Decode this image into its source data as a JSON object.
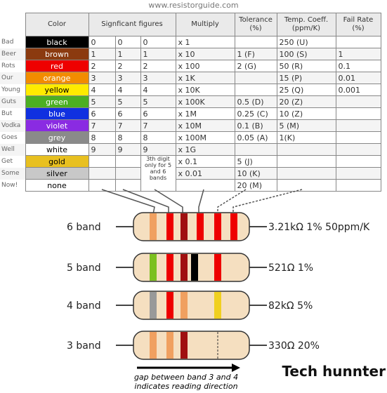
{
  "header": {
    "url": "www.resistorguide.com"
  },
  "table": {
    "columns": [
      {
        "title": "Color"
      },
      {
        "title": "Signficant figures"
      },
      {
        "title": "Multiply"
      },
      {
        "title": "Tolerance",
        "unit": "(%)"
      },
      {
        "title": "Temp. Coeff.",
        "unit": "(ppm/K)"
      },
      {
        "title": "Fail Rate",
        "unit": "(%)"
      }
    ],
    "rows": [
      {
        "mnemonic": "Bad",
        "color": "black",
        "digits": [
          "0",
          "0",
          "0"
        ],
        "multiply": "x 1",
        "temp": "250 (U)"
      },
      {
        "mnemonic": "Beer",
        "color": "brown",
        "digits": [
          "1",
          "1",
          "1"
        ],
        "multiply": "x 10",
        "tolerance": "1 (F)",
        "temp": "100 (S)",
        "fail": "1"
      },
      {
        "mnemonic": "Rots",
        "color": "red",
        "digits": [
          "2",
          "2",
          "2"
        ],
        "multiply": "x 100",
        "tolerance": "2 (G)",
        "temp": "50 (R)",
        "fail": "0.1"
      },
      {
        "mnemonic": "Our",
        "color": "orange",
        "digits": [
          "3",
          "3",
          "3"
        ],
        "multiply": "x 1K",
        "temp": "15 (P)",
        "fail": "0.01"
      },
      {
        "mnemonic": "Young",
        "color": "yellow",
        "digits": [
          "4",
          "4",
          "4"
        ],
        "multiply": "x 10K",
        "temp": "25 (Q)",
        "fail": "0.001"
      },
      {
        "mnemonic": "Guts",
        "color": "green",
        "digits": [
          "5",
          "5",
          "5"
        ],
        "multiply": "x 100K",
        "tolerance": "0.5 (D)",
        "temp": "20 (Z)"
      },
      {
        "mnemonic": "But",
        "color": "blue",
        "digits": [
          "6",
          "6",
          "6"
        ],
        "multiply": "x 1M",
        "tolerance": "0.25 (C)",
        "temp": "10 (Z)"
      },
      {
        "mnemonic": "Vodka",
        "color": "violet",
        "digits": [
          "7",
          "7",
          "7"
        ],
        "multiply": "x 10M",
        "tolerance": "0.1 (B)",
        "temp": "5 (M)"
      },
      {
        "mnemonic": "Goes",
        "color": "grey",
        "digits": [
          "8",
          "8",
          "8"
        ],
        "multiply": "x 100M",
        "tolerance": "0.05 (A)",
        "temp": "1(K)"
      },
      {
        "mnemonic": "Well",
        "color": "white",
        "digits": [
          "9",
          "9",
          "9"
        ],
        "multiply": "x 1G"
      },
      {
        "mnemonic": "Get",
        "color": "gold",
        "multiply": "x 0.1",
        "tolerance": "5 (J)"
      },
      {
        "mnemonic": "Some",
        "color": "silver",
        "multiply": "x 0.01",
        "tolerance": "10 (K)"
      },
      {
        "mnemonic": "Now!",
        "color": "none",
        "tolerance": "20 (M)"
      }
    ],
    "note": "3th digit only for 5 and 6 bands"
  },
  "resistors": [
    {
      "label": "6 band",
      "value": "3.21kΩ 1% 50ppm/K"
    },
    {
      "label": "5 band",
      "value": "521Ω 1%"
    },
    {
      "label": "4 band",
      "value": "82kΩ 5%"
    },
    {
      "label": "3 band",
      "value": "330Ω 20%"
    }
  ],
  "caption": [
    "gap between band 3 and 4",
    "indicates reading direction"
  ],
  "watermark": "Tech hunnter"
}
